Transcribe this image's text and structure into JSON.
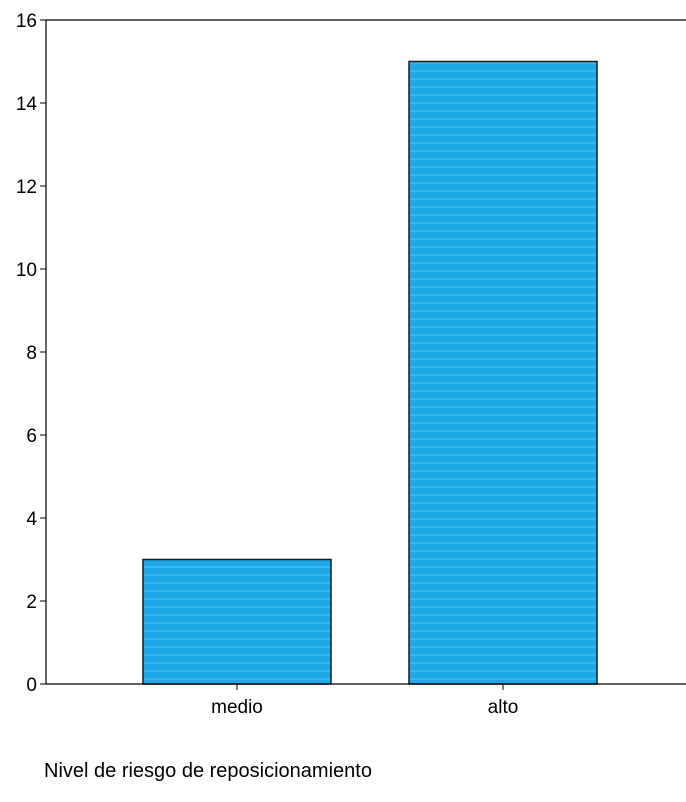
{
  "chart_data": {
    "type": "bar",
    "categories": [
      "medio",
      "alto"
    ],
    "values": [
      3,
      15
    ],
    "title": "",
    "xlabel": "Nivel de riesgo de reposicionamiento",
    "ylabel": "",
    "ylim": [
      0,
      16
    ],
    "yticks": [
      "0",
      "2",
      "4",
      "6",
      "8",
      "10",
      "12",
      "14",
      "16"
    ],
    "grid": false,
    "legend": "none"
  },
  "colors": {
    "bar_fill": "#1fa8e6",
    "bar_stroke": "#1a1a1a",
    "axis": "#000000"
  }
}
